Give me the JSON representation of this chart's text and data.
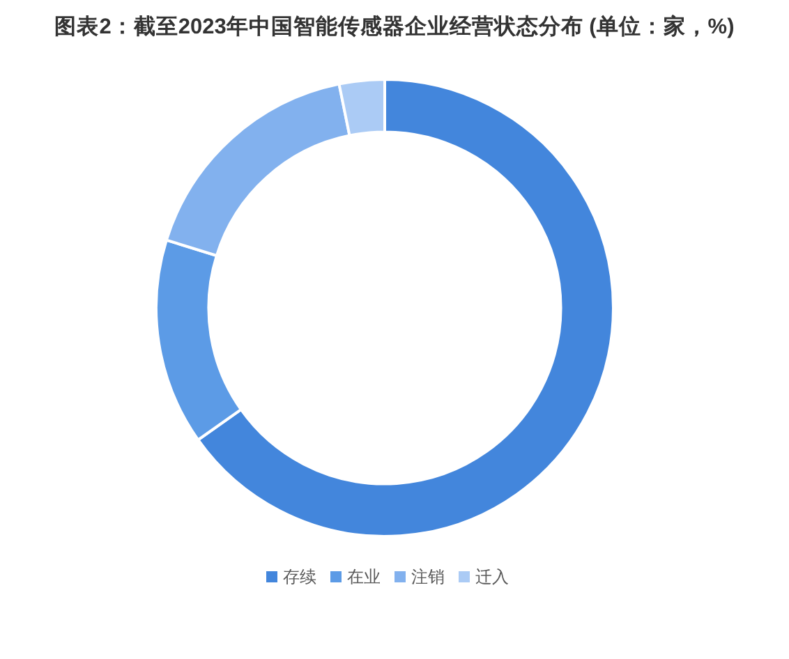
{
  "chart_data": {
    "type": "donut",
    "title": "图表2：截至2023年中国智能传感器企业经营状态分布 (单位：家，%)",
    "categories": [
      "存续",
      "在业",
      "注销",
      "迁入"
    ],
    "values": [
      65.2,
      14.6,
      17.0,
      3.2
    ],
    "colors": [
      "#4386dc",
      "#5c9be6",
      "#82b1ee",
      "#abcbf5"
    ],
    "legend": "bottom"
  }
}
